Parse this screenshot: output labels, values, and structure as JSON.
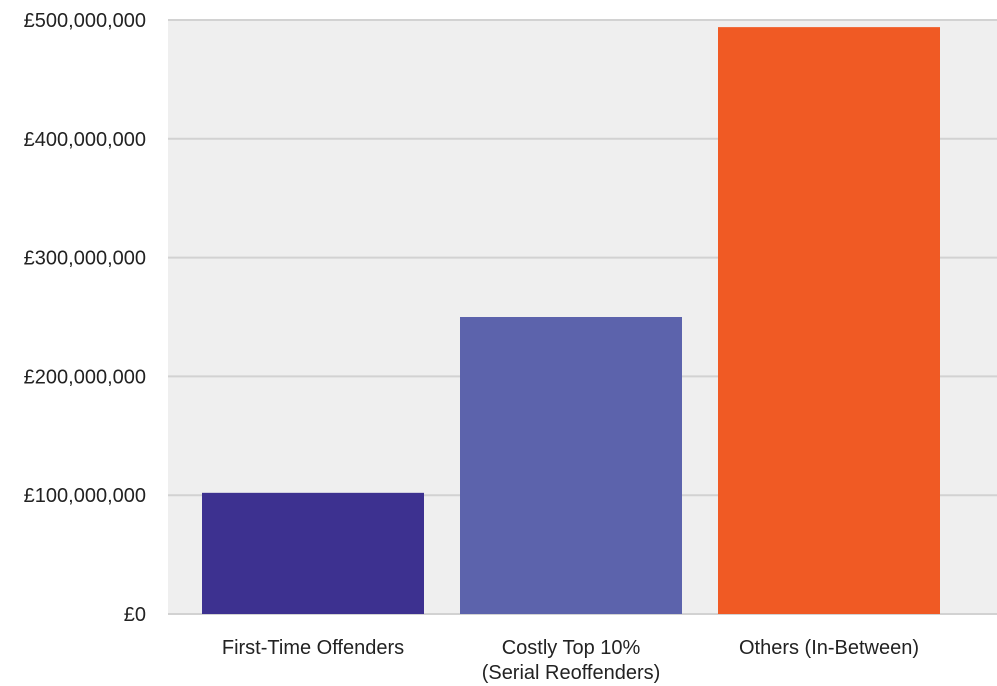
{
  "chart_data": {
    "type": "bar",
    "categories": [
      [
        "First-Time Offenders"
      ],
      [
        "Costly Top 10%",
        "(Serial Reoffenders)"
      ],
      [
        "Others (In-Between)"
      ]
    ],
    "values": [
      102000000,
      250000000,
      494000000
    ],
    "colors": [
      "#3d3190",
      "#5c63ac",
      "#f05a24"
    ],
    "ylim": [
      0,
      500000000
    ],
    "yticks": [
      0,
      100000000,
      200000000,
      300000000,
      400000000,
      500000000
    ],
    "ytick_labels": [
      "£0",
      "£100,000,000",
      "£200,000,000",
      "£300,000,000",
      "£400,000,000",
      "£500,000,000"
    ],
    "grid": true,
    "plot_background": "#efefef",
    "grid_color": "#d2d2d2"
  }
}
